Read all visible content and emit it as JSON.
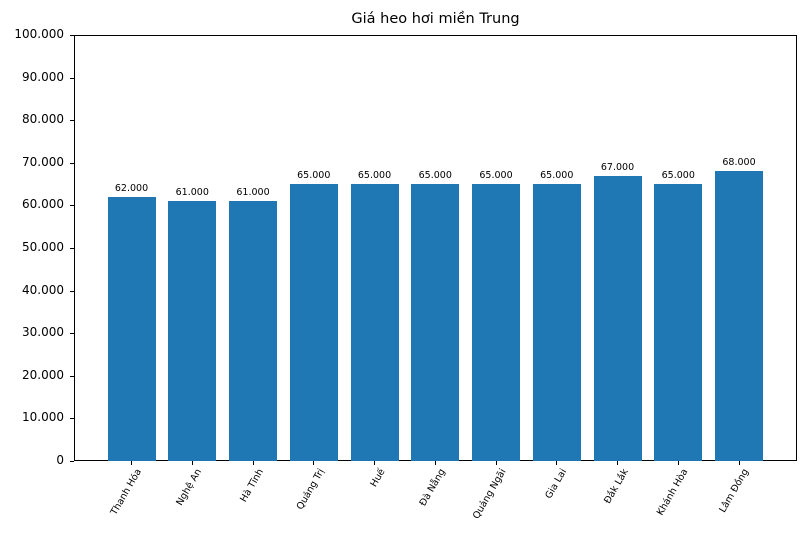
{
  "chart_data": {
    "type": "bar",
    "title": "Giá heo hơi miền Trung",
    "xlabel": "",
    "ylabel": "",
    "categories": [
      "Thanh Hóa",
      "Nghệ An",
      "Hà Tĩnh",
      "Quảng Trị",
      "Huế",
      "Đà Nẵng",
      "Quảng Ngãi",
      "Gia Lai",
      "Đắk Lắk",
      "Khánh Hòa",
      "Lâm Đồng"
    ],
    "values": [
      62000,
      61000,
      61000,
      65000,
      65000,
      65000,
      65000,
      65000,
      67000,
      65000,
      68000
    ],
    "value_labels": [
      "62.000",
      "61.000",
      "61.000",
      "65.000",
      "65.000",
      "65.000",
      "65.000",
      "65.000",
      "67.000",
      "65.000",
      "68.000"
    ],
    "ylim": [
      0,
      100000
    ],
    "yticks": [
      0,
      10000,
      20000,
      30000,
      40000,
      50000,
      60000,
      70000,
      80000,
      90000,
      100000
    ],
    "ytick_labels": [
      "0",
      "10.000",
      "20.000",
      "30.000",
      "40.000",
      "50.000",
      "60.000",
      "70.000",
      "80.000",
      "90.000",
      "100.000"
    ],
    "grid": false,
    "legend": null,
    "bar_color": "#1f77b4",
    "xtick_rotation": 60
  }
}
